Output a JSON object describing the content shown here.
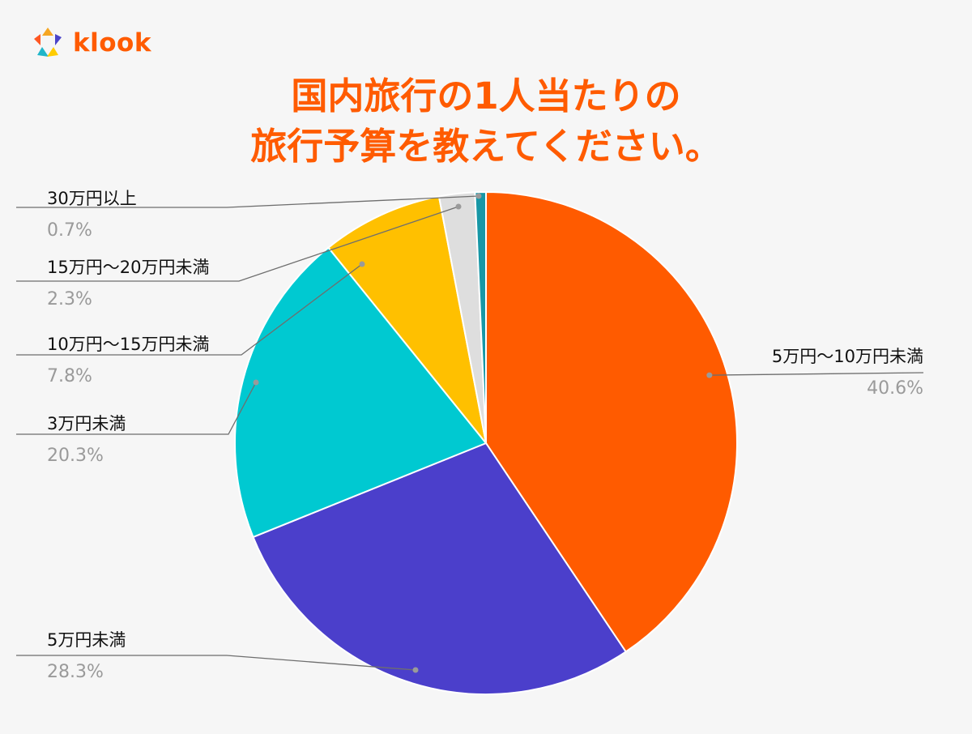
{
  "brand": {
    "name": "klook",
    "colors": [
      "#ff5722",
      "#f5a623",
      "#4a44c9",
      "#1fb6c9",
      "#ffcc00"
    ]
  },
  "title": {
    "line1": "国内旅行の1人当たりの",
    "line2": "旅行予算を教えてください。",
    "color": "#ff5b00"
  },
  "chart_data": {
    "type": "pie",
    "title": "国内旅行の1人当たりの旅行予算を教えてください。",
    "start": "12 o'clock",
    "direction": "clockwise",
    "slices": [
      {
        "label": "5万円〜10万円未満",
        "value": 40.6,
        "display": "40.6%",
        "color": "#ff5b00"
      },
      {
        "label": "5万円未満",
        "value": 28.3,
        "display": "28.3%",
        "color": "#4b3fcb"
      },
      {
        "label": "3万円未満",
        "value": 20.3,
        "display": "20.3%",
        "color": "#00c9d1"
      },
      {
        "label": "10万円〜15万円未満",
        "value": 7.8,
        "display": "7.8%",
        "color": "#ffc000"
      },
      {
        "label": "15万円〜20万円未満",
        "value": 2.3,
        "display": "2.3%",
        "color": "#dedede"
      },
      {
        "label": "30万円以上",
        "value": 0.7,
        "display": "0.7%",
        "color": "#1797a6"
      }
    ]
  }
}
